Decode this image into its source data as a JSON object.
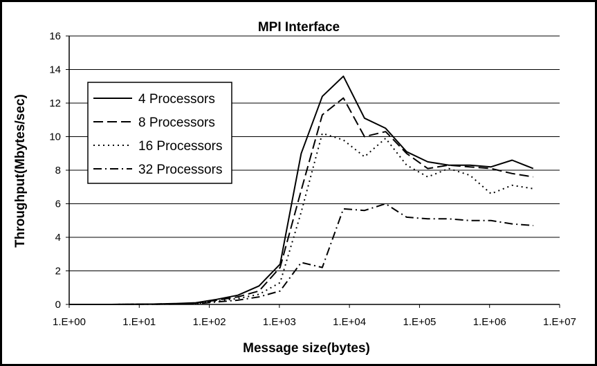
{
  "chart_data": {
    "type": "line",
    "title": "MPI Interface",
    "xlabel": "Message size(bytes)",
    "ylabel": "Throughput(Mbytes/sec)",
    "x_scale": "log",
    "xlim": [
      1,
      10000000
    ],
    "ylim": [
      0,
      16
    ],
    "x_ticks": [
      1,
      10,
      100,
      1000,
      10000,
      100000,
      1000000,
      10000000
    ],
    "x_tick_labels": [
      "1.E+00",
      "1.E+01",
      "1.E+02",
      "1.E+03",
      "1.E+04",
      "1.E+05",
      "1.E+06",
      "1.E+07"
    ],
    "y_ticks": [
      0,
      2,
      4,
      6,
      8,
      10,
      12,
      14,
      16
    ],
    "y_tick_labels": [
      "0",
      "2",
      "4",
      "6",
      "8",
      "10",
      "12",
      "14",
      "16"
    ],
    "grid": "horizontal",
    "legend_position": "left",
    "x": [
      1,
      2,
      4,
      8,
      16,
      32,
      64,
      128,
      256,
      512,
      1024,
      2048,
      4096,
      8192,
      16384,
      32768,
      65536,
      131072,
      262144,
      524288,
      1048576,
      2097152,
      4194304
    ],
    "series": [
      {
        "name": "4 Processors",
        "dash": "solid",
        "values": [
          0,
          0,
          0,
          0.01,
          0.02,
          0.05,
          0.1,
          0.3,
          0.55,
          1.1,
          2.4,
          9.0,
          12.4,
          13.6,
          11.1,
          10.5,
          9.1,
          8.5,
          8.3,
          8.3,
          8.2,
          8.6,
          8.1
        ]
      },
      {
        "name": "8 Processors",
        "dash": "dash",
        "values": [
          0,
          0,
          0,
          0.01,
          0.02,
          0.04,
          0.08,
          0.25,
          0.45,
          0.8,
          2.2,
          6.8,
          11.3,
          12.3,
          10.0,
          10.3,
          9.0,
          8.1,
          8.3,
          8.2,
          8.1,
          7.8,
          7.6
        ]
      },
      {
        "name": "16 Processors",
        "dash": "dot",
        "values": [
          0,
          0,
          0,
          0.01,
          0.01,
          0.03,
          0.05,
          0.2,
          0.35,
          0.6,
          1.3,
          5.5,
          10.2,
          9.8,
          8.8,
          9.9,
          8.3,
          7.6,
          8.1,
          7.7,
          6.6,
          7.1,
          6.9
        ]
      },
      {
        "name": "32 Processors",
        "dash": "dashdot",
        "values": [
          0,
          0,
          0,
          0.01,
          0.01,
          0.02,
          0.04,
          0.15,
          0.25,
          0.45,
          0.8,
          2.5,
          2.2,
          5.7,
          5.6,
          6.0,
          5.2,
          5.1,
          5.1,
          5.0,
          5.0,
          4.8,
          4.7
        ]
      }
    ]
  }
}
